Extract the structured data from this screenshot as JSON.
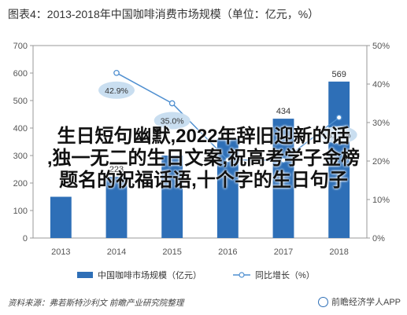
{
  "title": "图表4：2013-2018年中国咖啡消费市场规模（单位：亿元，%）",
  "chart_data": {
    "type": "bar",
    "categories": [
      "2013",
      "2014",
      "2015",
      "2016",
      "2017",
      "2018"
    ],
    "series": [
      {
        "name": "中国咖啡市场规模（亿元）",
        "type": "bar",
        "axis": "left",
        "values": [
          150,
          223,
          300,
          361,
          434,
          569
        ],
        "labels": [
          "",
          "223",
          "",
          "361",
          "434",
          "569"
        ],
        "color": "#2e6fb7"
      },
      {
        "name": "同比增长（%）",
        "type": "line",
        "axis": "right",
        "values": [
          null,
          42.9,
          35.0,
          20.3,
          20.2,
          31.3
        ],
        "labels": [
          "",
          "42.9%",
          "35.0%",
          "",
          "",
          "31.3%"
        ],
        "color": "#4f8fd0"
      }
    ],
    "ylim_left": [
      0,
      700
    ],
    "ylim_right": [
      0,
      50
    ],
    "yticks_left": [
      "0",
      "100",
      "200",
      "300",
      "400",
      "500",
      "600",
      "700"
    ],
    "yticks_right": [
      "0%",
      "10%",
      "20%",
      "30%",
      "40%",
      "50%"
    ],
    "grid": false
  },
  "legend": {
    "bar_label": "中国咖啡市场规模（亿元）",
    "line_label": "同比增长（%）"
  },
  "source": "资料来源：弗若斯特沙利文 前瞻产业研究院整理",
  "brand": "前瞻经济学人APP",
  "overlay": {
    "line1": "生日短句幽默,2022年辞旧迎新的话",
    "line2": ",独一无二的生日文案,祝高考学子金榜",
    "line3": "题名的祝福话语,十个字的生日句子"
  }
}
